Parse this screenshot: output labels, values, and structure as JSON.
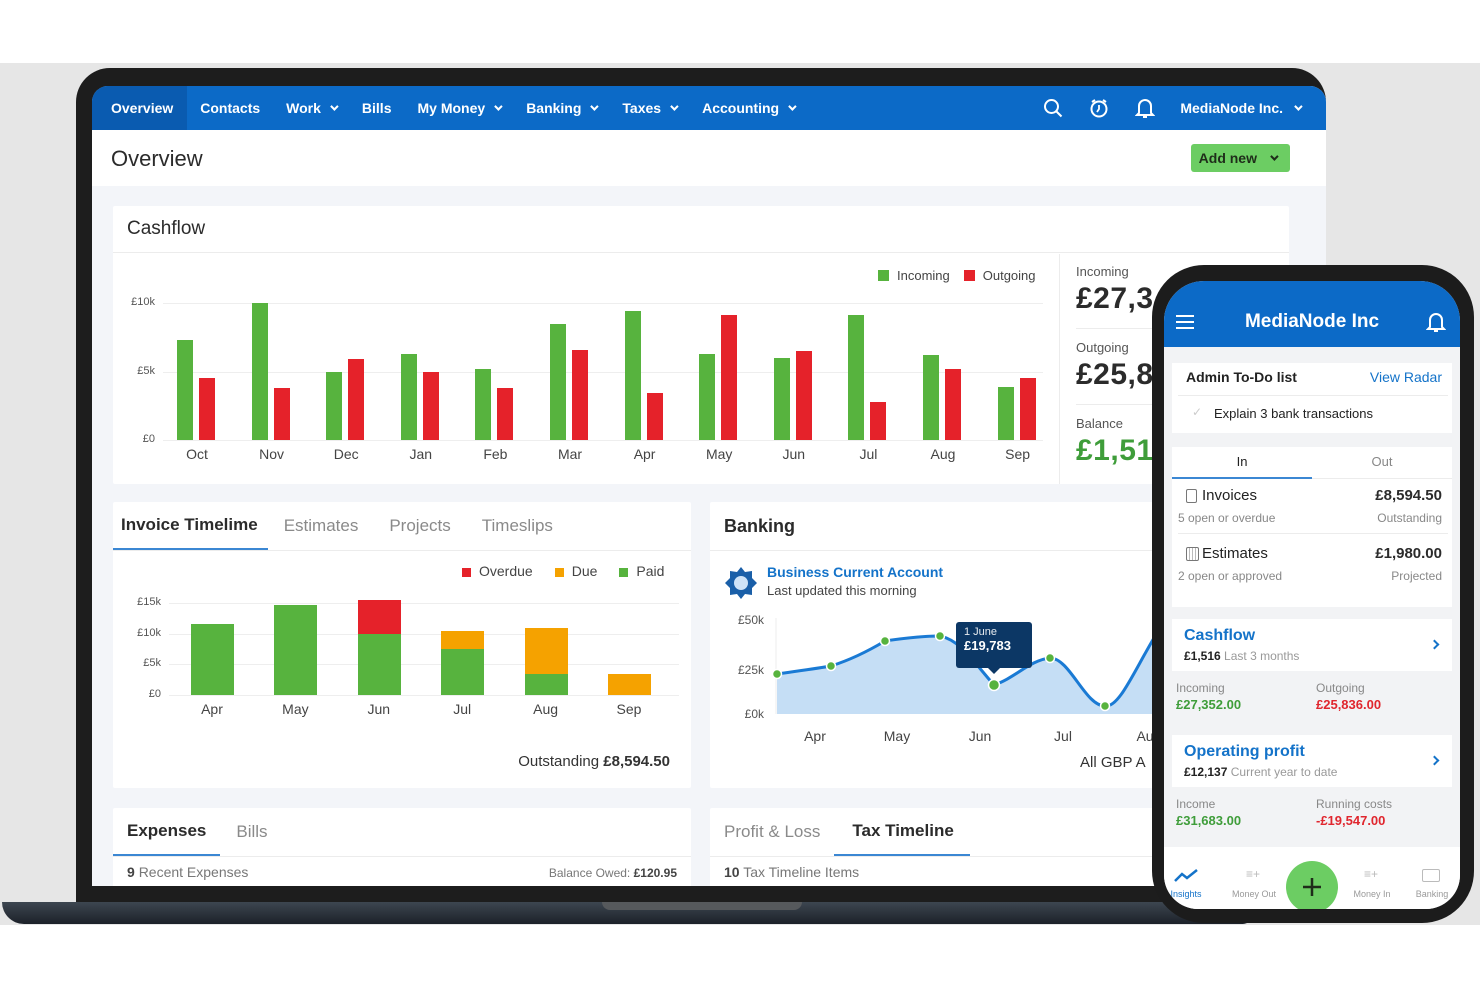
{
  "nav": {
    "items": [
      {
        "label": "Overview",
        "active": true,
        "dropdown": false
      },
      {
        "label": "Contacts",
        "dropdown": false
      },
      {
        "label": "Work",
        "dropdown": true
      },
      {
        "label": "Bills",
        "dropdown": false
      },
      {
        "label": "My Money",
        "dropdown": true
      },
      {
        "label": "Banking",
        "dropdown": true
      },
      {
        "label": "Taxes",
        "dropdown": true
      },
      {
        "label": "Accounting",
        "dropdown": true
      }
    ],
    "icons": [
      "search-icon",
      "timer-icon",
      "bell-icon"
    ],
    "org_name": "MediaNode Inc."
  },
  "page": {
    "title": "Overview",
    "add_new_label": "Add new"
  },
  "colors": {
    "brand_blue": "#0c6ac7",
    "incoming_green": "#57b33e",
    "outgoing_red": "#e5222a",
    "due_orange": "#f5a200",
    "add_button": "#6ccd63"
  },
  "cashflow": {
    "title": "Cashflow",
    "legend": [
      "Incoming",
      "Outgoing"
    ],
    "summary": [
      {
        "label": "Incoming",
        "value": "£27,3"
      },
      {
        "label": "Outgoing",
        "value": "£25,8"
      },
      {
        "label": "Balance",
        "value": "£1,51"
      }
    ]
  },
  "invoice": {
    "tabs": [
      "Invoice Timelime",
      "Estimates",
      "Projects",
      "Timeslips"
    ],
    "legend": [
      "Overdue",
      "Due",
      "Paid"
    ],
    "outstanding_label": "Outstanding",
    "outstanding_value": "£8,594.50"
  },
  "banking": {
    "title": "Banking",
    "account_name": "Business Current Account",
    "account_sub": "Last updated this morning",
    "tooltip_date": "1 June",
    "tooltip_value": "£19,783",
    "footer": "All GBP A"
  },
  "expenses": {
    "tabs": [
      "Expenses",
      "Bills"
    ],
    "count": "9",
    "count_label": "Recent Expenses",
    "balance_label": "Balance Owed:",
    "balance_value": "£120.95"
  },
  "tax": {
    "tabs": [
      "Profit & Loss",
      "Tax Timeline"
    ],
    "count": "10",
    "count_label": "Tax Timeline Items"
  },
  "phone": {
    "title": "MediaNode Inc",
    "todo_title": "Admin To-Do list",
    "todo_link": "View Radar",
    "todo_item": "Explain 3 bank transactions",
    "tabs": [
      "In",
      "Out"
    ],
    "invoices": {
      "label": "Invoices",
      "sub": "5 open or overdue",
      "amount": "£8,594.50",
      "amount_sub": "Outstanding"
    },
    "estimates": {
      "label": "Estimates",
      "sub": "2 open or approved",
      "amount": "£1,980.00",
      "amount_sub": "Projected"
    },
    "cashflow": {
      "title": "Cashflow",
      "value": "£1,516",
      "period": "Last 3 months",
      "incoming_label": "Incoming",
      "incoming": "£27,352.00",
      "outgoing_label": "Outgoing",
      "outgoing": "£25,836.00"
    },
    "profit": {
      "title": "Operating profit",
      "value": "£12,137",
      "period": "Current year to date",
      "income_label": "Income",
      "income": "£31,683.00",
      "costs_label": "Running costs",
      "costs": "-£19,547.00"
    },
    "tabbar": [
      "Insights",
      "Money Out",
      "Money In",
      "Banking"
    ]
  },
  "chart_data": [
    {
      "type": "bar",
      "title": "Cashflow",
      "categories": [
        "Oct",
        "Nov",
        "Dec",
        "Jan",
        "Feb",
        "Mar",
        "Apr",
        "May",
        "Jun",
        "Jul",
        "Aug",
        "Sep"
      ],
      "series": [
        {
          "name": "Incoming",
          "color": "#57b33e",
          "values": [
            7300,
            10000,
            5000,
            6300,
            5200,
            8500,
            9400,
            6300,
            6000,
            9100,
            6200,
            3900
          ]
        },
        {
          "name": "Outgoing",
          "color": "#e5222a",
          "values": [
            4500,
            3800,
            5900,
            5000,
            3800,
            6600,
            3400,
            9100,
            6500,
            2800,
            5200,
            4500
          ]
        }
      ],
      "yticks": [
        "£0",
        "£5k",
        "£10k"
      ],
      "ylim": [
        0,
        10000
      ],
      "legend_position": "top-right",
      "grid": true
    },
    {
      "type": "bar",
      "stacked": true,
      "title": "Invoice Timelime",
      "categories": [
        "Apr",
        "May",
        "Jun",
        "Jul",
        "Aug",
        "Sep"
      ],
      "series": [
        {
          "name": "Paid",
          "color": "#57b33e",
          "values": [
            11500,
            14700,
            10000,
            7500,
            3500,
            0
          ]
        },
        {
          "name": "Due",
          "color": "#f5a200",
          "values": [
            0,
            0,
            0,
            3000,
            7500,
            3500
          ]
        },
        {
          "name": "Overdue",
          "color": "#e5222a",
          "values": [
            0,
            0,
            5500,
            0,
            0,
            0
          ]
        }
      ],
      "yticks": [
        "£0",
        "£5k",
        "£10k",
        "£15k"
      ],
      "ylim": [
        0,
        15000
      ],
      "legend_position": "top-right"
    },
    {
      "type": "area",
      "title": "Business Current Account",
      "x": [
        "Mar 25",
        "Apr 15",
        "May 1",
        "May 20",
        "Jun 1",
        "Jun 25",
        "Jul 15",
        "Aug"
      ],
      "xticks": [
        "Apr",
        "May",
        "Jun",
        "Jul",
        "Au"
      ],
      "values": [
        20000,
        26000,
        37000,
        40000,
        19783,
        28000,
        3000,
        45000
      ],
      "yticks": [
        "£0k",
        "£25k",
        "£50k"
      ],
      "ylim": [
        0,
        50000
      ],
      "annotation": {
        "label": "1 June",
        "value": "£19,783"
      }
    }
  ]
}
